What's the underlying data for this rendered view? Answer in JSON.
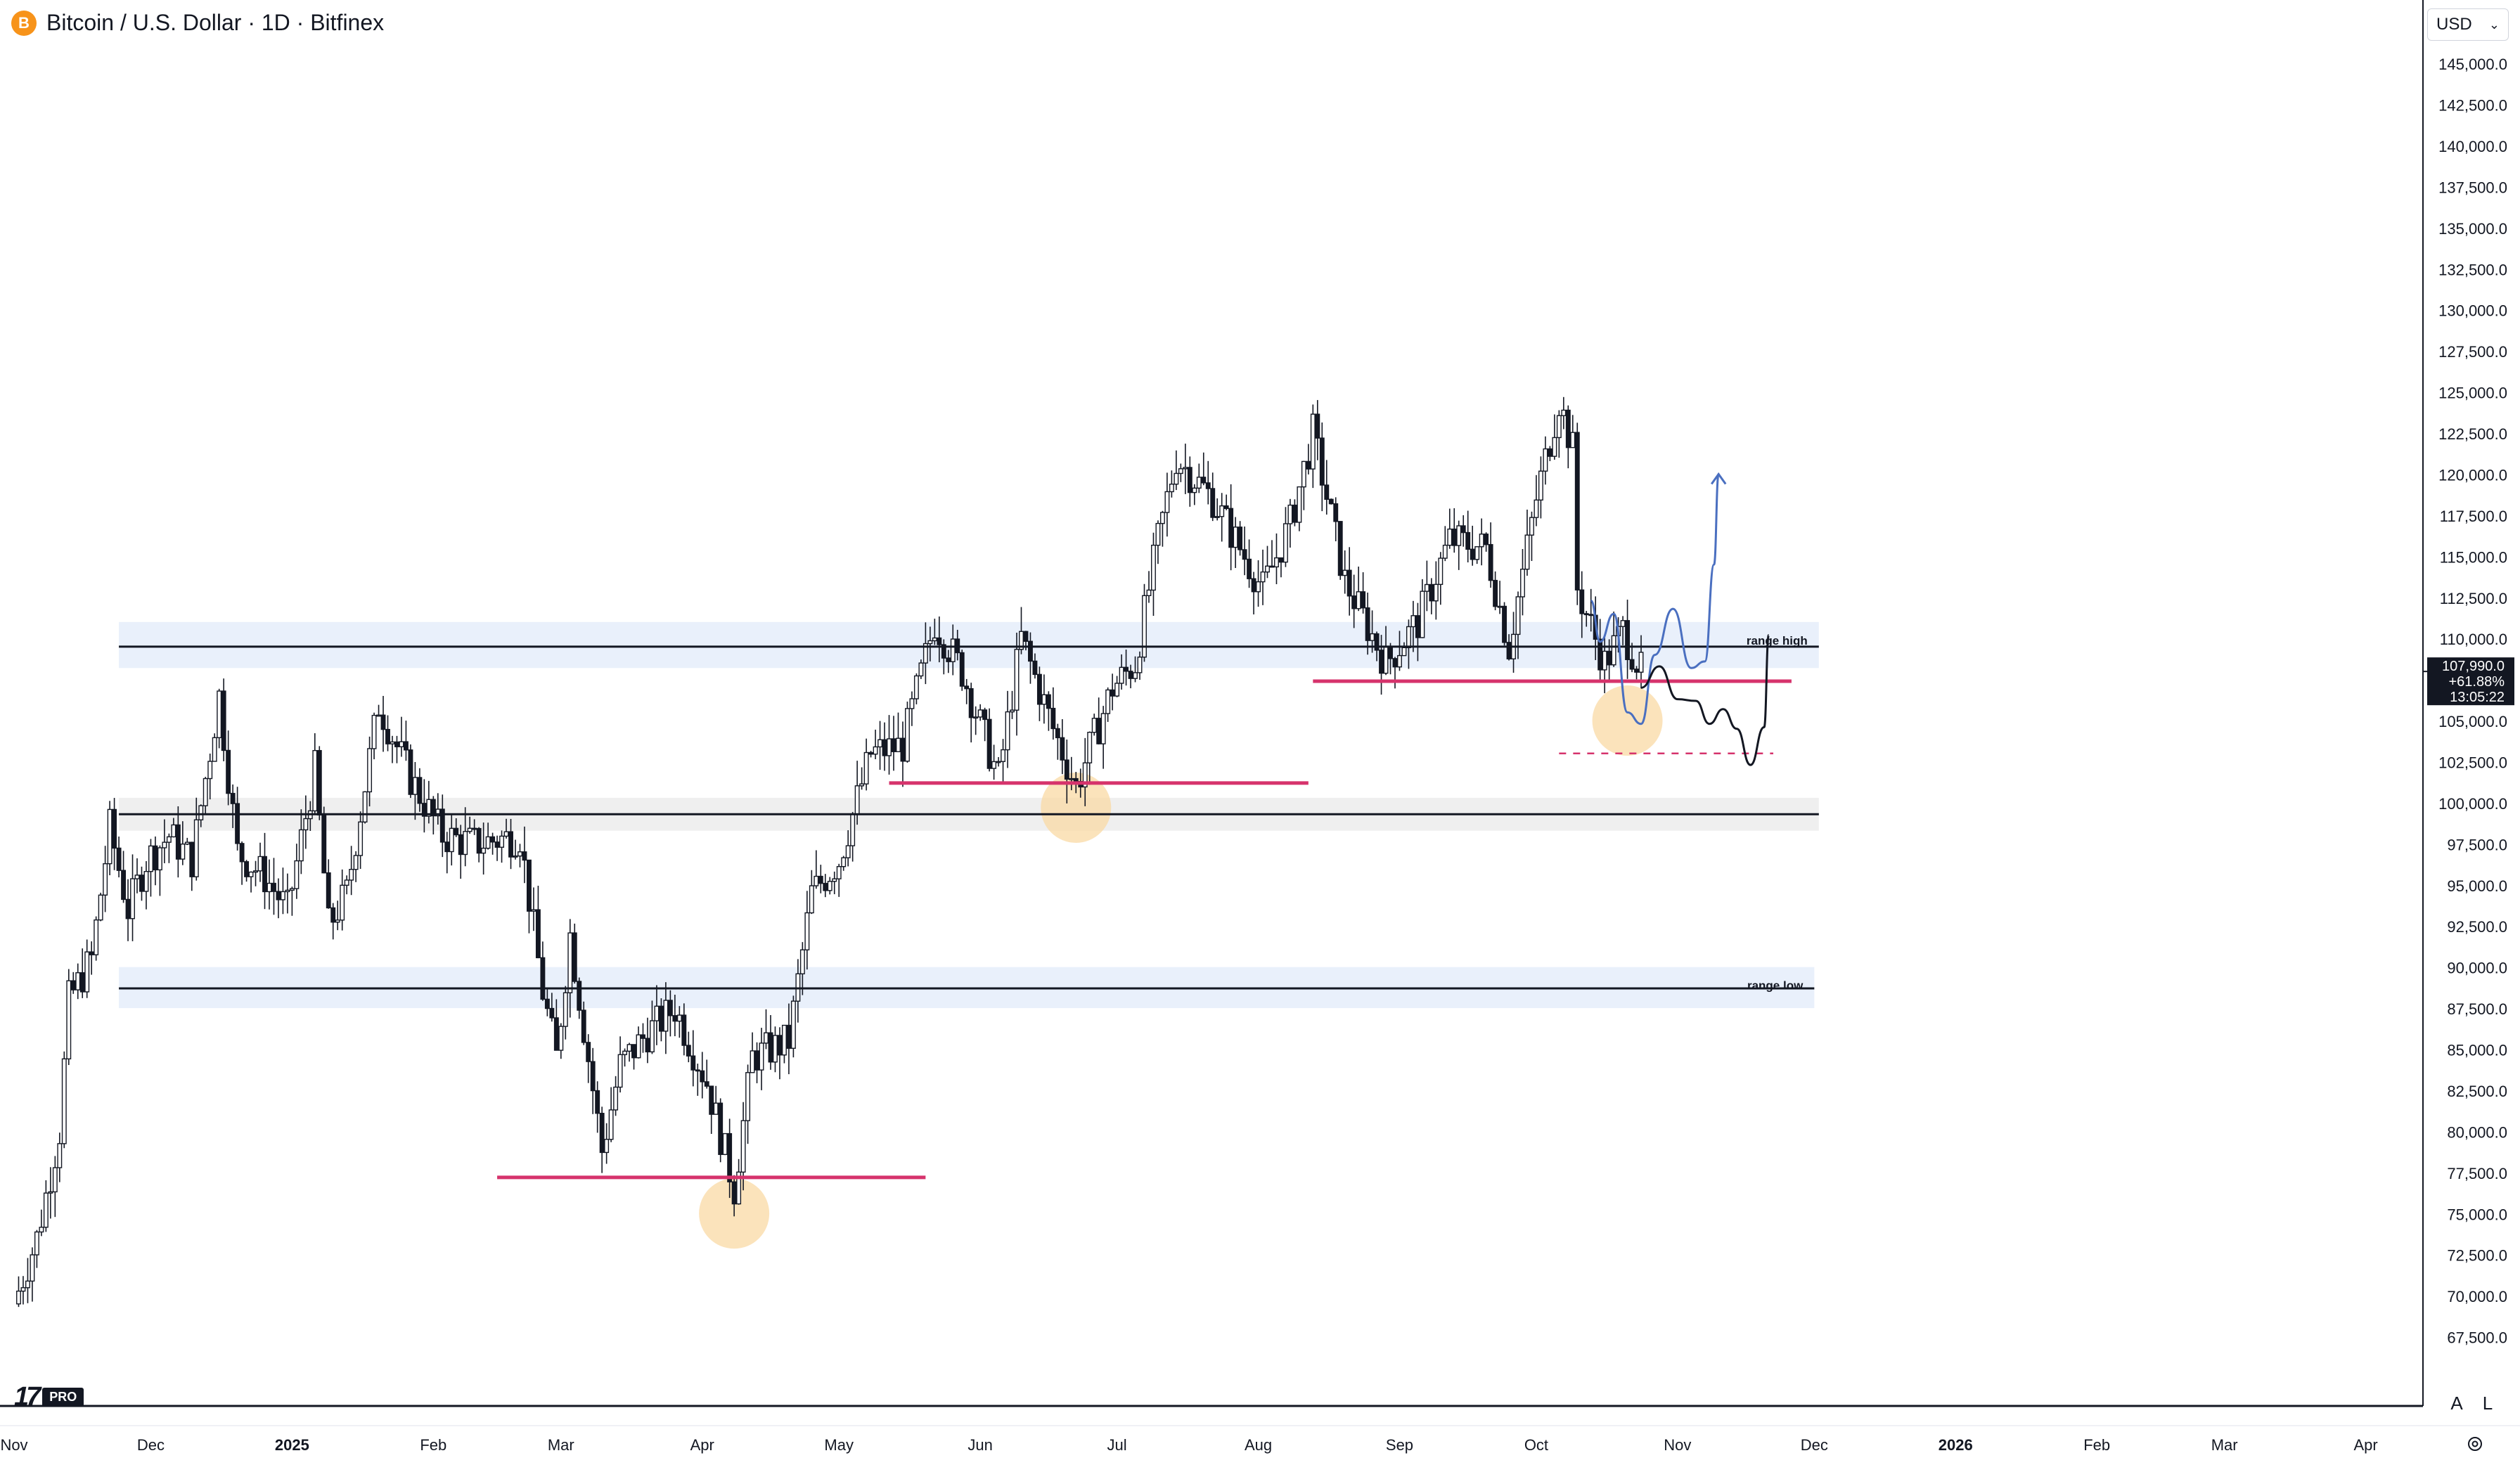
{
  "header": {
    "symbol_badge": "B",
    "title": "Bitcoin / U.S. Dollar · 1D · Bitfinex"
  },
  "currency_selector": {
    "label": "USD",
    "chevron_icon": "chevron-down-icon"
  },
  "price_label": {
    "price": "107,990.0",
    "change": "+61.88%",
    "countdown": "13:05:22"
  },
  "scale_buttons": {
    "auto": "A",
    "log": "L"
  },
  "logo": {
    "mark": "17",
    "badge": "PRO"
  },
  "colors": {
    "candle": "#131722",
    "support": "#d6336c",
    "zone_blue": "#e9f0fb",
    "zone_grey": "#efefef",
    "circle": "#f9d9a4",
    "projection_blue": "#4a6fc0",
    "projection_black": "#131722"
  },
  "chart_data": {
    "type": "candlestick",
    "title": "Bitcoin / U.S. Dollar · 1D · Bitfinex",
    "ylim": [
      65000,
      148000
    ],
    "y_ticks": [
      145000,
      142500,
      140000,
      137500,
      135000,
      132500,
      130000,
      127500,
      125000,
      122500,
      120000,
      117500,
      115000,
      112500,
      110000,
      107500,
      105000,
      102500,
      100000,
      97500,
      95000,
      92500,
      90000,
      87500,
      85000,
      82500,
      80000,
      77500,
      75000,
      72500,
      70000,
      67500
    ],
    "y_tick_labels": [
      "145,000.0",
      "142,500.0",
      "140,000.0",
      "137,500.0",
      "135,000.0",
      "132,500.0",
      "130,000.0",
      "127,500.0",
      "125,000.0",
      "122,500.0",
      "120,000.0",
      "117,500.0",
      "115,000.0",
      "112,500.0",
      "110,000.0",
      "107,500.0",
      "105,000.0",
      "102,500.0",
      "100,000.0",
      "97,500.0",
      "95,000.0",
      "92,500.0",
      "90,000.0",
      "87,500.0",
      "85,000.0",
      "82,500.0",
      "80,000.0",
      "77,500.0",
      "75,000.0",
      "72,500.0",
      "70,000.0",
      "67,500.0"
    ],
    "x_range": [
      "2024-11-01",
      "2026-04-08"
    ],
    "x_ticks": [
      {
        "date": "2024-11-01",
        "label": "Nov",
        "bold": false
      },
      {
        "date": "2024-12-01",
        "label": "Dec",
        "bold": false
      },
      {
        "date": "2025-01-01",
        "label": "2025",
        "bold": true
      },
      {
        "date": "2025-02-01",
        "label": "Feb",
        "bold": false
      },
      {
        "date": "2025-03-01",
        "label": "Mar",
        "bold": false
      },
      {
        "date": "2025-04-01",
        "label": "Apr",
        "bold": false
      },
      {
        "date": "2025-05-01",
        "label": "May",
        "bold": false
      },
      {
        "date": "2025-06-01",
        "label": "Jun",
        "bold": false
      },
      {
        "date": "2025-07-01",
        "label": "Jul",
        "bold": false
      },
      {
        "date": "2025-08-01",
        "label": "Aug",
        "bold": false
      },
      {
        "date": "2025-09-01",
        "label": "Sep",
        "bold": false
      },
      {
        "date": "2025-10-01",
        "label": "Oct",
        "bold": false
      },
      {
        "date": "2025-11-01",
        "label": "Nov",
        "bold": false
      },
      {
        "date": "2025-12-01",
        "label": "Dec",
        "bold": false
      },
      {
        "date": "2026-01-01",
        "label": "2026",
        "bold": true
      },
      {
        "date": "2026-02-01",
        "label": "Feb",
        "bold": false
      },
      {
        "date": "2026-03-01",
        "label": "Mar",
        "bold": false
      },
      {
        "date": "2026-04-01",
        "label": "Apr",
        "bold": false
      }
    ],
    "price_anchors": [
      [
        "2024-11-01",
        69500
      ],
      [
        "2024-11-06",
        73500
      ],
      [
        "2024-11-11",
        80000
      ],
      [
        "2024-11-13",
        88000
      ],
      [
        "2024-11-18",
        90500
      ],
      [
        "2024-11-22",
        98500
      ],
      [
        "2024-11-26",
        93500
      ],
      [
        "2024-11-30",
        96500
      ],
      [
        "2024-12-05",
        98000
      ],
      [
        "2024-12-10",
        96500
      ],
      [
        "2024-12-16",
        106500
      ],
      [
        "2024-12-20",
        97000
      ],
      [
        "2024-12-26",
        95500
      ],
      [
        "2024-12-31",
        93500
      ],
      [
        "2025-01-06",
        102000
      ],
      [
        "2025-01-09",
        92500
      ],
      [
        "2025-01-13",
        94500
      ],
      [
        "2025-01-20",
        106000
      ],
      [
        "2025-01-27",
        101500
      ],
      [
        "2025-02-03",
        98000
      ],
      [
        "2025-02-10",
        97500
      ],
      [
        "2025-02-20",
        98000
      ],
      [
        "2025-02-25",
        88500
      ],
      [
        "2025-02-28",
        84500
      ],
      [
        "2025-03-03",
        92000
      ],
      [
        "2025-03-10",
        78800
      ],
      [
        "2025-03-14",
        84000
      ],
      [
        "2025-03-20",
        86000
      ],
      [
        "2025-03-26",
        87500
      ],
      [
        "2025-04-02",
        83000
      ],
      [
        "2025-04-08",
        76500
      ],
      [
        "2025-04-12",
        84500
      ],
      [
        "2025-04-20",
        85500
      ],
      [
        "2025-04-25",
        94500
      ],
      [
        "2025-05-01",
        96500
      ],
      [
        "2025-05-08",
        103000
      ],
      [
        "2025-05-15",
        103500
      ],
      [
        "2025-05-22",
        111000
      ],
      [
        "2025-05-28",
        108000
      ],
      [
        "2025-06-05",
        101500
      ],
      [
        "2025-06-10",
        110000
      ],
      [
        "2025-06-17",
        104500
      ],
      [
        "2025-06-22",
        101000
      ],
      [
        "2025-06-30",
        107000
      ],
      [
        "2025-07-05",
        108500
      ],
      [
        "2025-07-10",
        116000
      ],
      [
        "2025-07-14",
        121000
      ],
      [
        "2025-07-22",
        118500
      ],
      [
        "2025-08-02",
        113000
      ],
      [
        "2025-08-08",
        117000
      ],
      [
        "2025-08-13",
        122500
      ],
      [
        "2025-08-20",
        113500
      ],
      [
        "2025-08-29",
        108500
      ],
      [
        "2025-09-05",
        111000
      ],
      [
        "2025-09-12",
        116000
      ],
      [
        "2025-09-20",
        115500
      ],
      [
        "2025-09-25",
        109500
      ],
      [
        "2025-10-01",
        118500
      ],
      [
        "2025-10-06",
        124500
      ],
      [
        "2025-10-09",
        121500
      ],
      [
        "2025-10-10",
        113000
      ],
      [
        "2025-10-16",
        108500
      ],
      [
        "2025-10-20",
        110500
      ],
      [
        "2025-10-24",
        107990
      ]
    ],
    "levels": [
      {
        "label": "range high",
        "price": 109500,
        "zone": [
          108200,
          111000
        ],
        "start": "2024-11-24",
        "end": "2025-12-02",
        "style": "zone-blue"
      },
      {
        "label": "",
        "price": 99300,
        "zone": [
          98300,
          100300
        ],
        "start": "2024-11-24",
        "end": "2025-12-02",
        "style": "zone-grey"
      },
      {
        "label": "range low",
        "price": 88700,
        "zone": [
          87500,
          90000
        ],
        "start": "2024-11-24",
        "end": "2025-12-01",
        "style": "zone-blue"
      }
    ],
    "support_lines": [
      {
        "price": 77200,
        "start": "2025-02-15",
        "end": "2025-05-20"
      },
      {
        "price": 101200,
        "start": "2025-05-12",
        "end": "2025-08-12"
      },
      {
        "price": 107400,
        "start": "2025-08-13",
        "end": "2025-11-26"
      },
      {
        "price": 103000,
        "start": "2025-10-06",
        "end": "2025-11-22",
        "dashed": true
      }
    ],
    "circles": [
      {
        "date": "2025-04-08",
        "price": 75000
      },
      {
        "date": "2025-06-22",
        "price": 99700
      },
      {
        "date": "2025-10-21",
        "price": 105000
      }
    ],
    "projection_blue": [
      [
        "2025-10-13",
        112300
      ],
      [
        "2025-10-15",
        109800
      ],
      [
        "2025-10-18",
        111500
      ],
      [
        "2025-10-21",
        105500
      ],
      [
        "2025-10-24",
        104800
      ],
      [
        "2025-10-27",
        109000
      ],
      [
        "2025-10-31",
        111800
      ],
      [
        "2025-11-04",
        108200
      ],
      [
        "2025-11-07",
        108600
      ],
      [
        "2025-11-09",
        114500
      ],
      [
        "2025-11-10",
        120000
      ]
    ],
    "projection_black": [
      [
        "2025-10-24",
        107000
      ],
      [
        "2025-10-28",
        108300
      ],
      [
        "2025-11-01",
        106300
      ],
      [
        "2025-11-05",
        106200
      ],
      [
        "2025-11-08",
        104800
      ],
      [
        "2025-11-11",
        105700
      ],
      [
        "2025-11-14",
        104500
      ],
      [
        "2025-11-17",
        102300
      ],
      [
        "2025-11-20",
        104600
      ],
      [
        "2025-11-21",
        110200
      ]
    ],
    "current_price": 107990
  }
}
